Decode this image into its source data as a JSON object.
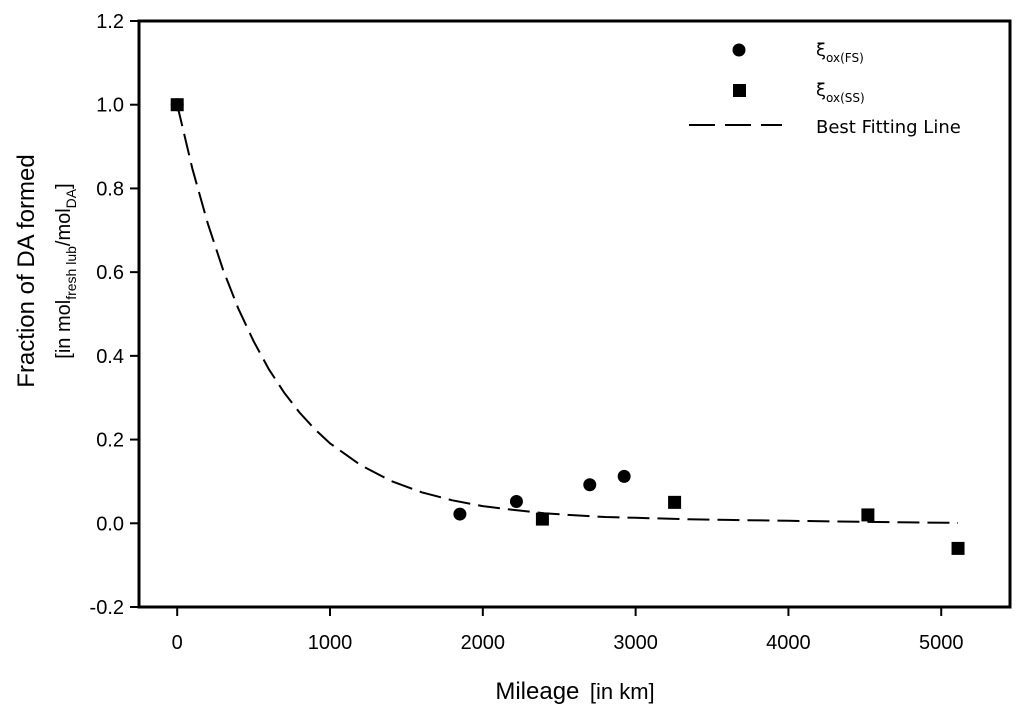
{
  "chart_data": {
    "type": "scatter",
    "xlabel": {
      "main": "Mileage",
      "unit": "[in km]"
    },
    "ylabel": {
      "main": "Fraction of DA formed",
      "unit_prefix": "[in mol",
      "unit_sub1": "fresh lub",
      "unit_mid": "/mol",
      "unit_sub2": "DA",
      "unit_suffix": "]"
    },
    "xlim": [
      -250,
      5450
    ],
    "ylim": [
      -0.2,
      1.2
    ],
    "xticks": [
      0,
      1000,
      2000,
      3000,
      4000,
      5000
    ],
    "xtick_labels": [
      "0",
      "1000",
      "2000",
      "3000",
      "4000",
      "5000"
    ],
    "yticks": [
      -0.2,
      0.0,
      0.2,
      0.4,
      0.6,
      0.8,
      1.0,
      1.2
    ],
    "ytick_labels": [
      "-0.2",
      "0.0",
      "0.2",
      "0.4",
      "0.6",
      "0.8",
      "1.0",
      "1.2"
    ],
    "series": [
      {
        "name": "ξox(FS)",
        "label_main": "ξ",
        "label_sub": "ox(FS)",
        "marker": "circle",
        "points": [
          [
            0,
            1.0
          ],
          [
            1850,
            0.022
          ],
          [
            2220,
            0.052
          ],
          [
            2700,
            0.092
          ],
          [
            2925,
            0.112
          ]
        ]
      },
      {
        "name": "ξox(SS)",
        "label_main": "ξ",
        "label_sub": "ox(SS)",
        "marker": "square",
        "points": [
          [
            0,
            1.0
          ],
          [
            2390,
            0.01
          ],
          [
            3255,
            0.05
          ],
          [
            4520,
            0.02
          ],
          [
            5110,
            -0.06
          ]
        ]
      },
      {
        "name": "Best Fitting Line",
        "label_main": "Best Fitting Line",
        "marker": "dashed-line",
        "points": [
          [
            0,
            1.0
          ],
          [
            100,
            0.846
          ],
          [
            200,
            0.716
          ],
          [
            300,
            0.606
          ],
          [
            400,
            0.513
          ],
          [
            500,
            0.435
          ],
          [
            600,
            0.368
          ],
          [
            700,
            0.312
          ],
          [
            800,
            0.265
          ],
          [
            900,
            0.225
          ],
          [
            1000,
            0.191
          ],
          [
            1200,
            0.139
          ],
          [
            1400,
            0.101
          ],
          [
            1600,
            0.074
          ],
          [
            1800,
            0.055
          ],
          [
            2000,
            0.041
          ],
          [
            2200,
            0.032
          ],
          [
            2400,
            0.024
          ],
          [
            2600,
            0.019
          ],
          [
            2800,
            0.015
          ],
          [
            3000,
            0.013
          ],
          [
            3300,
            0.01
          ],
          [
            3600,
            0.008
          ],
          [
            4000,
            0.006
          ],
          [
            4400,
            0.004
          ],
          [
            4800,
            0.002
          ],
          [
            5110,
            0.001
          ]
        ]
      }
    ]
  }
}
